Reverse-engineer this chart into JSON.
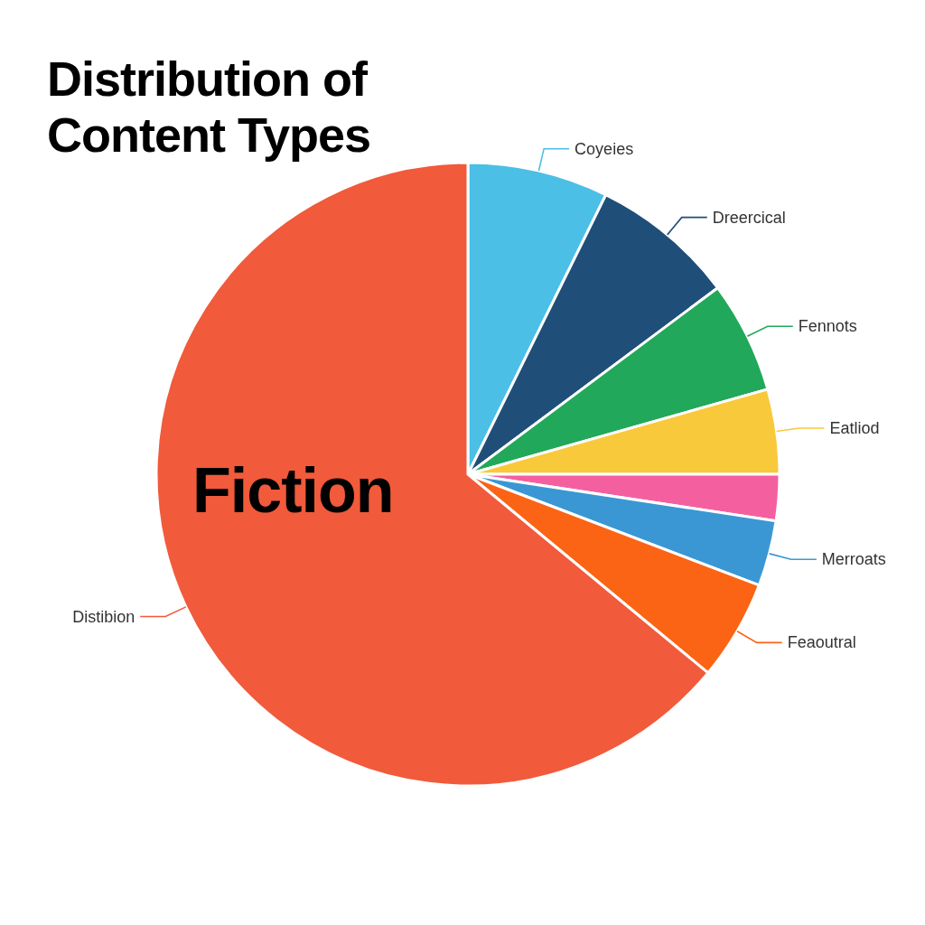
{
  "chart_data": {
    "type": "pie",
    "title": "Distribution of Content Types",
    "categories": [
      "Coyeies",
      "Dreercical",
      "Fennots",
      "Eatliod",
      null,
      "Merroats",
      "Feaoutral",
      "Distibion"
    ],
    "values": [
      7.3,
      7.5,
      5.8,
      4.4,
      2.4,
      3.4,
      5.2,
      64
    ],
    "colors": [
      "#4bbfe6",
      "#1f4e79",
      "#22a85a",
      "#f9c93c",
      "#f4609f",
      "#3a97d4",
      "#fb6414",
      "#f15a3b"
    ],
    "annotations": [
      "Fiction"
    ]
  }
}
